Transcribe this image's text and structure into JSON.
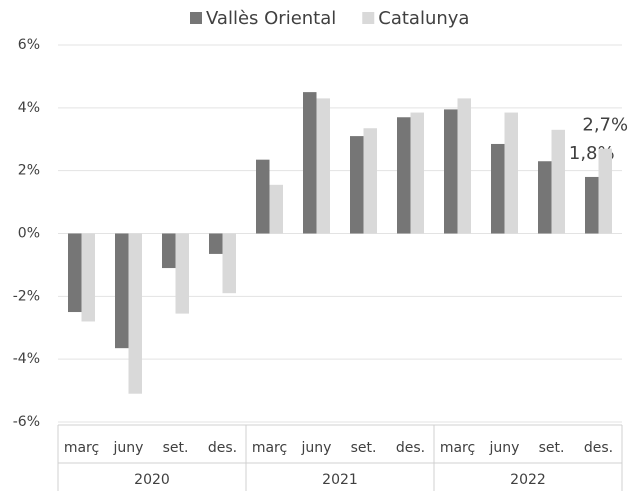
{
  "chart_data": {
    "type": "bar",
    "categories": [
      "març",
      "juny",
      "set.",
      "des.",
      "març",
      "juny",
      "set.",
      "des.",
      "març",
      "juny",
      "set.",
      "des."
    ],
    "groups": [
      "2020",
      "2021",
      "2022"
    ],
    "series": [
      {
        "name": "Vallès Oriental",
        "color": "#767676",
        "values": [
          -2.5,
          -3.65,
          -1.1,
          -0.65,
          2.35,
          4.5,
          3.1,
          3.7,
          3.95,
          2.85,
          2.3,
          1.8
        ],
        "value_labels": [
          null,
          null,
          null,
          null,
          null,
          null,
          null,
          null,
          null,
          null,
          null,
          "1,8%"
        ]
      },
      {
        "name": "Catalunya",
        "color": "#d9d9d9",
        "values": [
          -2.8,
          -5.1,
          -2.55,
          -1.9,
          1.55,
          4.3,
          3.35,
          3.85,
          4.3,
          3.85,
          3.3,
          2.7
        ],
        "value_labels": [
          null,
          null,
          null,
          null,
          null,
          null,
          null,
          null,
          null,
          null,
          null,
          "2,7%"
        ]
      }
    ],
    "ylim": [
      -6,
      6
    ],
    "yticks": [
      {
        "value": -6,
        "label": "-6%"
      },
      {
        "value": -4,
        "label": "-4%"
      },
      {
        "value": -2,
        "label": "-2%"
      },
      {
        "value": 0,
        "label": "0%"
      },
      {
        "value": 2,
        "label": "2%"
      },
      {
        "value": 4,
        "label": "4%"
      },
      {
        "value": 6,
        "label": "6%"
      }
    ],
    "grid": true,
    "legend": "top"
  }
}
